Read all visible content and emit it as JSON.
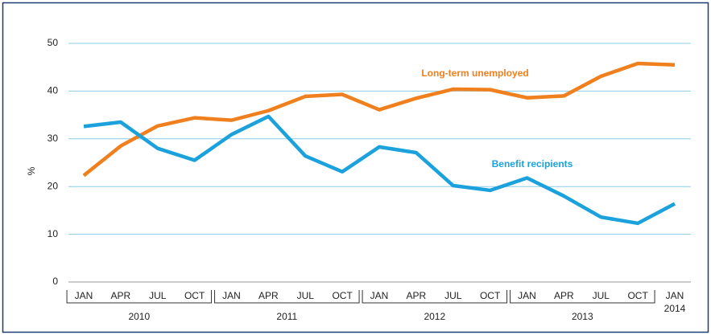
{
  "chart_data": {
    "type": "line",
    "y_label": "%",
    "categories": [
      "JAN",
      "APR",
      "JUL",
      "OCT",
      "JAN",
      "APR",
      "JUL",
      "OCT",
      "JAN",
      "APR",
      "JUL",
      "OCT",
      "JAN",
      "APR",
      "JUL",
      "OCT",
      "JAN"
    ],
    "year_groups": [
      "2010",
      "2011",
      "2012",
      "2013",
      "2014"
    ],
    "series": [
      {
        "name": "Long-term unemployed",
        "color": "#f07f1e",
        "values": [
          22.3,
          28.5,
          32.7,
          34.4,
          33.9,
          35.9,
          38.9,
          39.3,
          36.1,
          38.5,
          40.4,
          40.3,
          38.6,
          39.0,
          43.1,
          45.8,
          45.5
        ]
      },
      {
        "name": "Benefit recipients",
        "color": "#1ba1dc",
        "values": [
          32.6,
          33.5,
          28.0,
          25.5,
          30.9,
          34.7,
          26.4,
          23.1,
          28.3,
          27.1,
          20.2,
          19.2,
          21.8,
          18.0,
          13.6,
          12.3,
          16.4
        ]
      }
    ],
    "ylim": [
      0,
      50
    ],
    "yticks": [
      0,
      10,
      20,
      30,
      40,
      50
    ],
    "grid": true
  }
}
